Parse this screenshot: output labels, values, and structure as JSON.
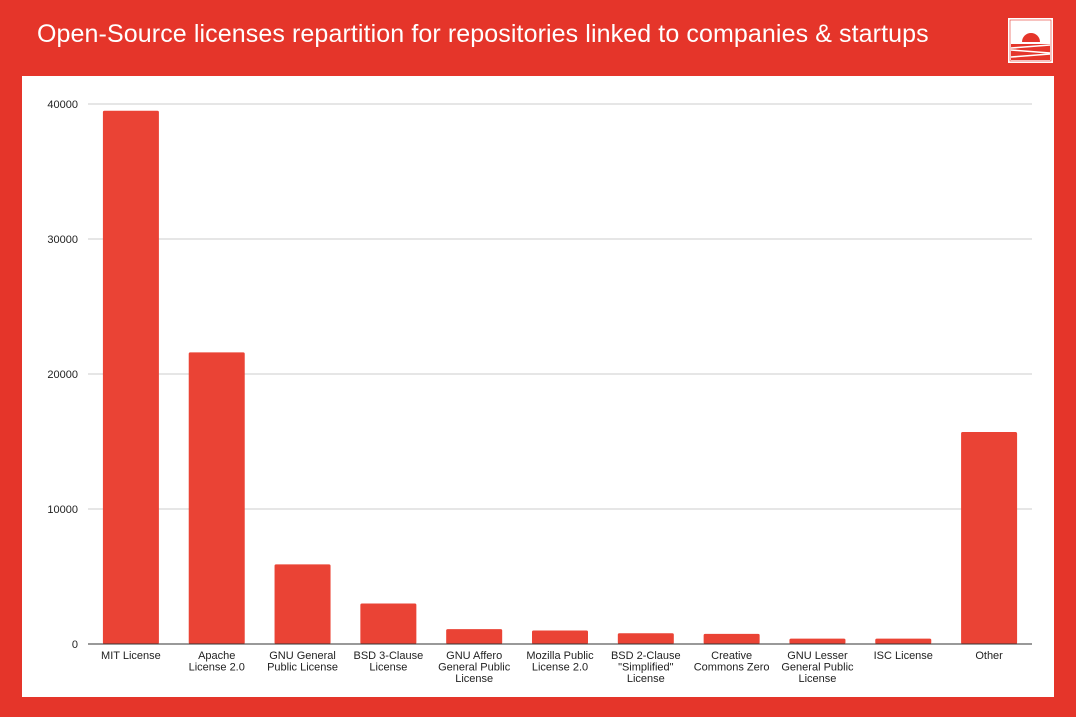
{
  "header": {
    "title": "Open-Source licenses repartition for repositories linked to companies & startups",
    "logo_icon": "sunset-logo-icon"
  },
  "colors": {
    "background": "#e5352a",
    "bar": "#ea4335",
    "panel": "#ffffff"
  },
  "chart_data": {
    "type": "bar",
    "title": "",
    "xlabel": "",
    "ylabel": "",
    "ylim": [
      0,
      40000
    ],
    "yticks": [
      0,
      10000,
      20000,
      30000,
      40000
    ],
    "grid": true,
    "legend": "none",
    "categories": [
      "MIT License",
      "Apache License 2.0",
      "GNU General Public License",
      "BSD 3-Clause License",
      "GNU Affero General Public License",
      "Mozilla Public License 2.0",
      "BSD 2-Clause \"Simplified\" License",
      "Creative Commons Zero",
      "GNU Lesser General Public License",
      "ISC License",
      "Other"
    ],
    "category_lines": [
      [
        "MIT License"
      ],
      [
        "Apache",
        "License 2.0"
      ],
      [
        "GNU General",
        "Public License"
      ],
      [
        "BSD 3-Clause",
        "License"
      ],
      [
        "GNU Affero",
        "General Public",
        "License"
      ],
      [
        "Mozilla Public",
        "License 2.0"
      ],
      [
        "BSD 2-Clause",
        "\"Simplified\"",
        "License"
      ],
      [
        "Creative",
        "Commons Zero"
      ],
      [
        "GNU Lesser",
        "General Public",
        "License"
      ],
      [
        "ISC License"
      ],
      [
        "Other"
      ]
    ],
    "values": [
      39500,
      21600,
      5900,
      3000,
      1100,
      1000,
      800,
      750,
      400,
      400,
      15700
    ]
  }
}
